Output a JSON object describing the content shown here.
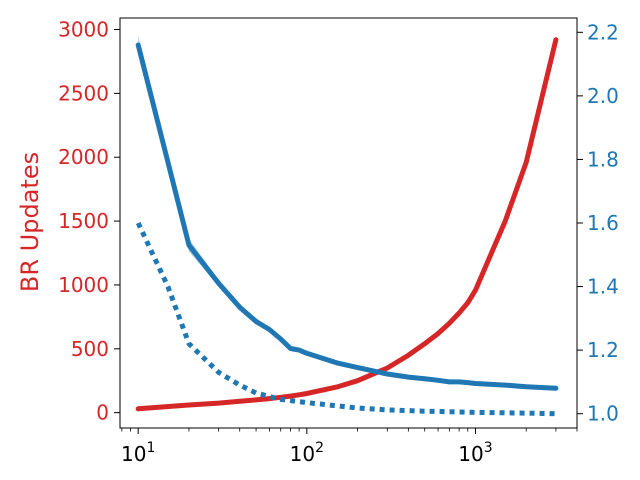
{
  "chart_data": {
    "type": "line",
    "title": "",
    "xlabel": "",
    "xscale": "log",
    "xlim": [
      7.8,
      4000
    ],
    "x_ticks": [
      {
        "value": 10,
        "base": "10",
        "exp": "1"
      },
      {
        "value": 100,
        "base": "10",
        "exp": "2"
      },
      {
        "value": 1000,
        "base": "10",
        "exp": "3"
      }
    ],
    "y_left": {
      "label": "BR Updates",
      "color": "#d62728",
      "ylim": [
        -120,
        3090
      ],
      "ticks": [
        0,
        500,
        1000,
        1500,
        2000,
        2500,
        3000
      ]
    },
    "y_right": {
      "label": "",
      "color": "#1f77b4",
      "ylim": [
        0.955,
        2.245
      ],
      "ticks": [
        "1.0",
        "1.2",
        "1.4",
        "1.6",
        "1.8",
        "2.0",
        "2.2"
      ]
    },
    "legend": "none",
    "grid": false,
    "series": [
      {
        "axis": "left",
        "style": "solid",
        "color": "#d62728",
        "x": [
          10,
          20,
          30,
          40,
          50,
          60,
          70,
          80,
          90,
          100,
          150,
          200,
          300,
          400,
          500,
          600,
          700,
          800,
          900,
          1000,
          1500,
          2000,
          3000
        ],
        "y": [
          30,
          60,
          75,
          90,
          100,
          110,
          120,
          130,
          140,
          150,
          200,
          250,
          350,
          450,
          540,
          620,
          700,
          780,
          860,
          960,
          1500,
          1960,
          2920
        ]
      },
      {
        "axis": "right",
        "style": "solid",
        "color": "#1f77b4",
        "x": [
          10,
          20,
          30,
          40,
          50,
          60,
          70,
          80,
          90,
          100,
          150,
          200,
          300,
          400,
          500,
          600,
          700,
          800,
          900,
          1000,
          1500,
          2000,
          3000
        ],
        "y": [
          2.16,
          1.53,
          1.41,
          1.335,
          1.29,
          1.265,
          1.235,
          1.205,
          1.2,
          1.19,
          1.16,
          1.145,
          1.125,
          1.115,
          1.11,
          1.105,
          1.1,
          1.1,
          1.098,
          1.095,
          1.09,
          1.085,
          1.08
        ],
        "band_upper": [
          2.19,
          1.55,
          1.42,
          1.345,
          1.3,
          1.27,
          1.24,
          1.21,
          1.205,
          1.195,
          1.165,
          1.15,
          1.128,
          1.118,
          1.113,
          1.108,
          1.103,
          1.102,
          1.1,
          1.098,
          1.092,
          1.087,
          1.082
        ],
        "band_lower": [
          2.13,
          1.51,
          1.4,
          1.325,
          1.28,
          1.26,
          1.23,
          1.2,
          1.195,
          1.185,
          1.155,
          1.14,
          1.122,
          1.112,
          1.107,
          1.102,
          1.097,
          1.098,
          1.096,
          1.092,
          1.088,
          1.083,
          1.078
        ]
      },
      {
        "axis": "right",
        "style": "dotted",
        "color": "#1f77b4",
        "x": [
          10,
          15,
          20,
          30,
          40,
          50,
          70,
          100,
          150,
          200,
          300,
          500,
          1000,
          2000,
          3000
        ],
        "y": [
          1.6,
          1.4,
          1.22,
          1.13,
          1.09,
          1.065,
          1.045,
          1.035,
          1.025,
          1.018,
          1.012,
          1.008,
          1.004,
          1.002,
          1.0
        ]
      }
    ]
  }
}
